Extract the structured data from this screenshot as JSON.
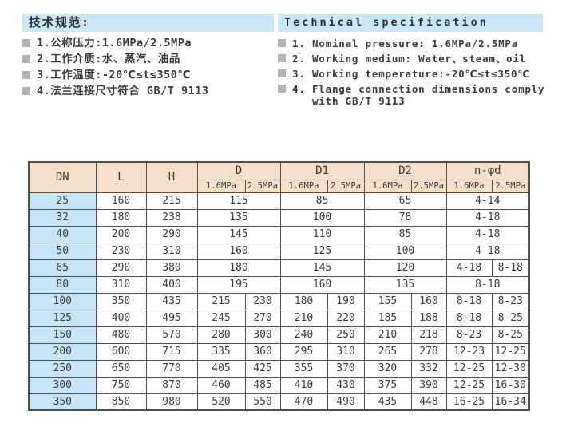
{
  "specs_cn": {
    "title": "技术规范:",
    "items": [
      "1.公称压力:1.6MPa/2.5MPa",
      "2.工作介质:水、蒸汽、油品",
      "3.工作温度:-20℃≤t≤350℃",
      "4.法兰连接尺寸符合 GB/T 9113"
    ]
  },
  "specs_en": {
    "title": "Technical specification",
    "items": [
      "1. Nominal pressure: 1.6MPa/2.5MPa",
      "2. Working medium: Water、steam、oil",
      "3. Working temperature:-20℃≤t≤350℃",
      "4. Flange connection dimensions comply\n   with GB/T 9113"
    ]
  },
  "table": {
    "headers": {
      "dn": "DN",
      "l": "L",
      "h": "H",
      "groups": [
        "D",
        "D1",
        "D2",
        "n-φd"
      ],
      "sub": [
        "1.6MPa",
        "2.5MPa"
      ]
    },
    "rows": [
      {
        "dn": "25",
        "l": "160",
        "h": "215",
        "d": [
          "115"
        ],
        "d1": [
          "85"
        ],
        "d2": [
          "65"
        ],
        "nd": [
          "4-14"
        ]
      },
      {
        "dn": "32",
        "l": "180",
        "h": "238",
        "d": [
          "135"
        ],
        "d1": [
          "100"
        ],
        "d2": [
          "78"
        ],
        "nd": [
          "4-18"
        ]
      },
      {
        "dn": "40",
        "l": "200",
        "h": "290",
        "d": [
          "145"
        ],
        "d1": [
          "110"
        ],
        "d2": [
          "85"
        ],
        "nd": [
          "4-18"
        ]
      },
      {
        "dn": "50",
        "l": "230",
        "h": "310",
        "d": [
          "160"
        ],
        "d1": [
          "125"
        ],
        "d2": [
          "100"
        ],
        "nd": [
          "4-18"
        ]
      },
      {
        "dn": "65",
        "l": "290",
        "h": "380",
        "d": [
          "180"
        ],
        "d1": [
          "145"
        ],
        "d2": [
          "120"
        ],
        "nd": [
          "4-18",
          "8-18"
        ]
      },
      {
        "dn": "80",
        "l": "310",
        "h": "400",
        "d": [
          "195"
        ],
        "d1": [
          "160"
        ],
        "d2": [
          "135"
        ],
        "nd": [
          "8-18"
        ]
      },
      {
        "dn": "100",
        "l": "350",
        "h": "435",
        "d": [
          "215",
          "230"
        ],
        "d1": [
          "180",
          "190"
        ],
        "d2": [
          "155",
          "160"
        ],
        "nd": [
          "8-18",
          "8-23"
        ]
      },
      {
        "dn": "125",
        "l": "400",
        "h": "495",
        "d": [
          "245",
          "270"
        ],
        "d1": [
          "210",
          "220"
        ],
        "d2": [
          "185",
          "188"
        ],
        "nd": [
          "8-18",
          "8-25"
        ]
      },
      {
        "dn": "150",
        "l": "480",
        "h": "570",
        "d": [
          "280",
          "300"
        ],
        "d1": [
          "240",
          "250"
        ],
        "d2": [
          "210",
          "218"
        ],
        "nd": [
          "8-23",
          "8-25"
        ]
      },
      {
        "dn": "200",
        "l": "600",
        "h": "715",
        "d": [
          "335",
          "360"
        ],
        "d1": [
          "295",
          "310"
        ],
        "d2": [
          "265",
          "278"
        ],
        "nd": [
          "12-23",
          "12-25"
        ]
      },
      {
        "dn": "250",
        "l": "650",
        "h": "770",
        "d": [
          "405",
          "425"
        ],
        "d1": [
          "355",
          "370"
        ],
        "d2": [
          "320",
          "332"
        ],
        "nd": [
          "12-25",
          "12-30"
        ]
      },
      {
        "dn": "300",
        "l": "750",
        "h": "870",
        "d": [
          "460",
          "485"
        ],
        "d1": [
          "410",
          "430"
        ],
        "d2": [
          "375",
          "390"
        ],
        "nd": [
          "12-25",
          "16-30"
        ]
      },
      {
        "dn": "350",
        "l": "850",
        "h": "980",
        "d": [
          "520",
          "550"
        ],
        "d1": [
          "470",
          "490"
        ],
        "d2": [
          "435",
          "448"
        ],
        "nd": [
          "16-25",
          "16-34"
        ]
      }
    ]
  },
  "colors": {
    "title_bar_bg": "#c9e7f6",
    "table_header_bg": "#f5dfc9",
    "dn_column_bg": "#c6e6f7",
    "bullet_gray": "#b3b3b3",
    "border": "#4f4f4f"
  }
}
